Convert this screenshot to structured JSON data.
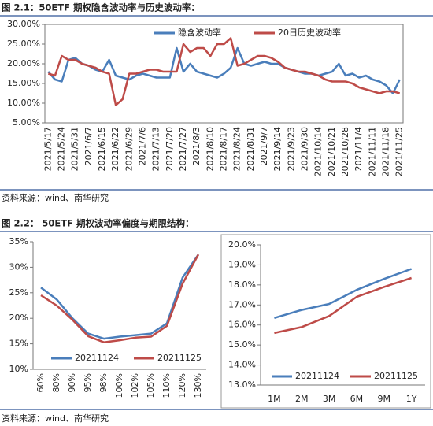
{
  "captions": [
    "图 2.1：50ETF 期权隐含波动率与历史波动率：",
    "图 2.2： 50ETF 期权波动率偏度与期限结构："
  ],
  "sources": [
    "资料来源：wind、南华研究",
    "资料来源：wind、南华研究"
  ],
  "chart_data": [
    {
      "type": "line",
      "categories": [
        "2021/5/17",
        null,
        "2021/5/24",
        null,
        "2021/5/31",
        null,
        "2021/6/7",
        null,
        "2021/6/15",
        null,
        "2021/6/22",
        null,
        "2021/6/29",
        null,
        "2021/7/6",
        null,
        "2021/7/13",
        null,
        "2021/7/20",
        null,
        "2021/7/27",
        null,
        "2021/8/3",
        null,
        "2021/8/10",
        null,
        "2021/8/17",
        null,
        "2021/8/24",
        null,
        "2021/8/31",
        null,
        "2021/9/7",
        null,
        "2021/9/14",
        null,
        "2021/9/23",
        null,
        "2021/9/30",
        null,
        "2021/10/14",
        null,
        "2021/10/21",
        null,
        "2021/10/28",
        null,
        "2021/11/4",
        null,
        "2021/11/11",
        null,
        "2021/11/18",
        null,
        "2021/11/25"
      ],
      "series": [
        {
          "name": "隐含波动率",
          "color": "#4a7ebb",
          "values": [
            18,
            16,
            15.5,
            21,
            21.5,
            20,
            19.5,
            18.5,
            18,
            21,
            17,
            16.5,
            16,
            17,
            17.5,
            17,
            16.5,
            16.5,
            16.5,
            24,
            18,
            20,
            18,
            17.5,
            17,
            16.5,
            17.5,
            19,
            24,
            20,
            19.5,
            20,
            20.5,
            20,
            20,
            19,
            18.5,
            18,
            17.5,
            17.5,
            17,
            17.5,
            18,
            20,
            17,
            17.5,
            16.5,
            17,
            16,
            15.5,
            14.5,
            12.5,
            16
          ]
        },
        {
          "name": "20日历史波动率",
          "color": "#be4b48",
          "values": [
            17.5,
            17,
            22,
            21,
            21,
            20,
            19.5,
            19,
            18,
            17.5,
            9.5,
            11,
            17.5,
            17.5,
            18,
            18.5,
            18.5,
            18,
            18,
            18,
            25,
            23,
            24,
            24,
            22,
            25,
            25,
            26.5,
            19.5,
            20,
            21,
            22,
            22,
            21.5,
            20.5,
            19,
            18.5,
            18,
            18,
            17.5,
            17,
            16,
            15.5,
            15.5,
            15.5,
            15,
            14,
            13.5,
            13,
            12.5,
            13,
            13,
            12.5
          ]
        }
      ],
      "ylim": [
        5,
        30
      ],
      "yticks": [
        {
          "value": 5,
          "label": "5.00%"
        },
        {
          "value": 10,
          "label": "10.00%"
        },
        {
          "value": 15,
          "label": "15.00%"
        },
        {
          "value": 20,
          "label": "20.00%"
        },
        {
          "value": 25,
          "label": "25.00%"
        },
        {
          "value": 30,
          "label": "30.00%"
        }
      ],
      "legend": "top",
      "grid": false
    },
    {
      "type": "line",
      "categories": [
        "60%",
        "80%",
        "90%",
        "95%",
        "98%",
        "100%",
        "102%",
        "105%",
        "110%",
        "120%",
        "130%"
      ],
      "series": [
        {
          "name": "20211124",
          "color": "#4a7ebb",
          "values": [
            26,
            23.7,
            20,
            17,
            16,
            16.4,
            16.7,
            17,
            19,
            28,
            32.5
          ]
        },
        {
          "name": "20211125",
          "color": "#be4b48",
          "values": [
            24.5,
            22.5,
            19.7,
            16.5,
            15.3,
            15.7,
            16.2,
            16.4,
            18.5,
            26.8,
            32.5
          ]
        }
      ],
      "ylim": [
        10,
        35
      ],
      "yticks": [
        {
          "value": 10,
          "label": "10%"
        },
        {
          "value": 15,
          "label": "15%"
        },
        {
          "value": 20,
          "label": "20%"
        },
        {
          "value": 25,
          "label": "25%"
        },
        {
          "value": 30,
          "label": "30%"
        },
        {
          "value": 35,
          "label": "35%"
        }
      ],
      "legend": "bottom",
      "grid": false
    },
    {
      "type": "line",
      "categories": [
        "1M",
        "2M",
        "3M",
        "6M",
        "9M",
        "1Y"
      ],
      "series": [
        {
          "name": "20211124",
          "color": "#4a7ebb",
          "values": [
            16.35,
            16.75,
            17.05,
            17.75,
            18.3,
            18.8
          ]
        },
        {
          "name": "20211125",
          "color": "#be4b48",
          "values": [
            15.6,
            15.9,
            16.45,
            17.4,
            17.9,
            18.35
          ]
        }
      ],
      "ylim": [
        13,
        20
      ],
      "yticks": [
        {
          "value": 13,
          "label": "13.0%"
        },
        {
          "value": 14,
          "label": "14.0%"
        },
        {
          "value": 15,
          "label": "15.0%"
        },
        {
          "value": 16,
          "label": "16.0%"
        },
        {
          "value": 17,
          "label": "17.0%"
        },
        {
          "value": 18,
          "label": "18.0%"
        },
        {
          "value": 19,
          "label": "19.0%"
        },
        {
          "value": 20,
          "label": "20.0%"
        }
      ],
      "legend": "bottom",
      "grid": false
    }
  ]
}
